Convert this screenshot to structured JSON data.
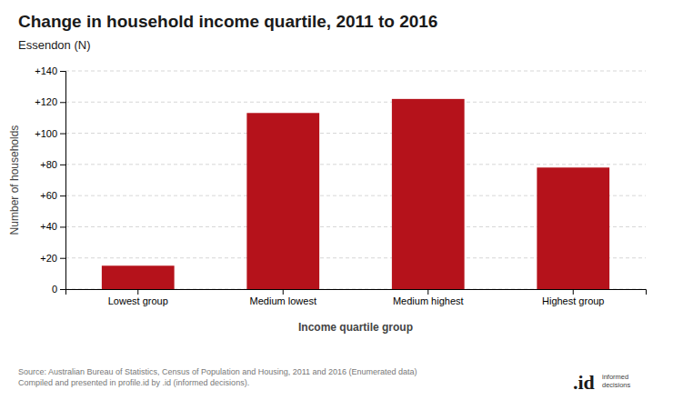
{
  "chart_data": {
    "type": "bar",
    "title": "Change in household income quartile, 2011 to 2016",
    "subtitle": "Essendon (N)",
    "categories": [
      "Lowest group",
      "Medium lowest",
      "Medium highest",
      "Highest group"
    ],
    "values": [
      15,
      113,
      122,
      78
    ],
    "color": "#b5121b",
    "xlabel": "Income quartile group",
    "ylabel": "Number of households",
    "ylim": [
      0,
      140
    ],
    "yticks": [
      0,
      {
        "value": 20,
        "label": "+20"
      },
      {
        "value": 40,
        "label": "+40"
      },
      {
        "value": 60,
        "label": "+60"
      },
      {
        "value": 80,
        "label": "+80"
      },
      {
        "value": 100,
        "label": "+100"
      },
      {
        "value": 120,
        "label": "+120"
      },
      {
        "value": 140,
        "label": "+140"
      }
    ],
    "grid": true,
    "annotations": [
      "Source: Australian Bureau of Statistics, Census of Population and Housing, 2011 and 2016 (Enumerated data)\nCompiled and presented in profile.id by .id (informed decisions).",
      ".id",
      "informed\ndecisions"
    ]
  }
}
